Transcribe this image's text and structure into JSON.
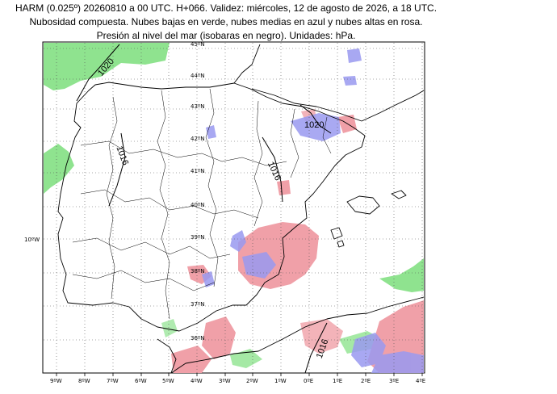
{
  "title": {
    "line1": "HARM (0.025º) 20260810 a 00 UTC. H+066. Validez: miércoles, 12 de agosto de 2026, a 18 UTC.",
    "line2": "Nubosidad compuesta. Nubes bajas en verde, nubes medias en azul y nubes altas en rosa.",
    "line3": "Presión al nivel del mar (isobaras en negro). Unidades: hPa."
  },
  "colors": {
    "low_clouds": "#8fe38f",
    "mid_clouds": "#9a9af0",
    "high_clouds": "#f0a0a8",
    "isobars": "#000000",
    "coast": "#000000"
  },
  "lat_labels": [
    "45ºN",
    "44ºN",
    "43ºN",
    "42ºN",
    "41ºN",
    "40ºN",
    "39ºN",
    "38ºN",
    "37ºN",
    "36ºN"
  ],
  "lon_labels": [
    "9ºW",
    "8ºW",
    "7ºW",
    "6ºW",
    "5ºW",
    "4ºW",
    "3ºW",
    "2ºW",
    "1ºW",
    "0ºE",
    "1ºE",
    "2ºE",
    "3ºE",
    "4ºE"
  ],
  "side_label": "10ºW",
  "isobar_labels": [
    "1020",
    "1016",
    "1016",
    "1020",
    "1016"
  ]
}
